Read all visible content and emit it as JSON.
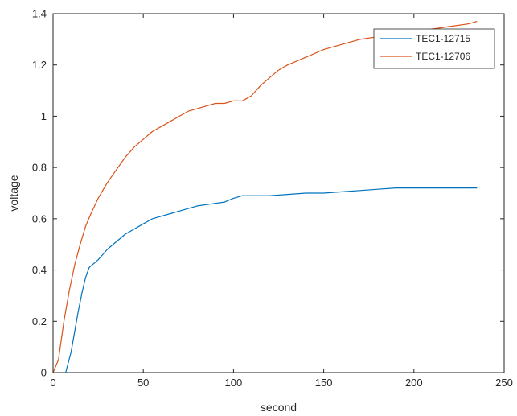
{
  "chart_data": {
    "type": "line",
    "xlabel": "second",
    "ylabel": "voltage",
    "xlim": [
      0,
      250
    ],
    "ylim": [
      0,
      1.4
    ],
    "xticks": [
      0,
      50,
      100,
      150,
      200,
      250
    ],
    "yticks": [
      0,
      0.2,
      0.4,
      0.6,
      0.8,
      1,
      1.2,
      1.4
    ],
    "x_tick_labels": [
      "0",
      "50",
      "100",
      "150",
      "200",
      "250"
    ],
    "y_tick_labels": [
      "0",
      "0.2",
      "0.4",
      "0.6",
      "0.8",
      "1",
      "1.2",
      "1.4"
    ],
    "grid": false,
    "legend_position": "top-right",
    "series": [
      {
        "name": "TEC1-12715",
        "color": "#0072BD",
        "x": [
          7,
          10,
          12,
          14,
          16,
          18,
          20,
          25,
          30,
          35,
          40,
          45,
          50,
          55,
          60,
          65,
          70,
          75,
          80,
          85,
          90,
          95,
          100,
          105,
          110,
          120,
          130,
          140,
          150,
          160,
          170,
          180,
          190,
          200,
          210,
          220,
          230,
          235
        ],
        "y": [
          0,
          0.08,
          0.16,
          0.24,
          0.31,
          0.37,
          0.41,
          0.44,
          0.48,
          0.51,
          0.54,
          0.56,
          0.58,
          0.6,
          0.61,
          0.62,
          0.63,
          0.64,
          0.65,
          0.655,
          0.66,
          0.665,
          0.68,
          0.69,
          0.69,
          0.69,
          0.695,
          0.7,
          0.7,
          0.705,
          0.71,
          0.715,
          0.72,
          0.72,
          0.72,
          0.72,
          0.72,
          0.72
        ]
      },
      {
        "name": "TEC1-12706",
        "color": "#D95319",
        "x": [
          0,
          3,
          6,
          9,
          12,
          15,
          18,
          21,
          25,
          30,
          35,
          40,
          45,
          50,
          55,
          60,
          65,
          70,
          75,
          80,
          85,
          90,
          95,
          100,
          105,
          110,
          115,
          120,
          125,
          130,
          140,
          150,
          160,
          170,
          180,
          190,
          200,
          210,
          220,
          230,
          235
        ],
        "y": [
          0,
          0.05,
          0.2,
          0.32,
          0.42,
          0.5,
          0.57,
          0.62,
          0.68,
          0.74,
          0.79,
          0.84,
          0.88,
          0.91,
          0.94,
          0.96,
          0.98,
          1.0,
          1.02,
          1.03,
          1.04,
          1.05,
          1.05,
          1.06,
          1.06,
          1.08,
          1.12,
          1.15,
          1.18,
          1.2,
          1.23,
          1.26,
          1.28,
          1.3,
          1.31,
          1.32,
          1.33,
          1.34,
          1.35,
          1.36,
          1.37
        ]
      }
    ]
  }
}
